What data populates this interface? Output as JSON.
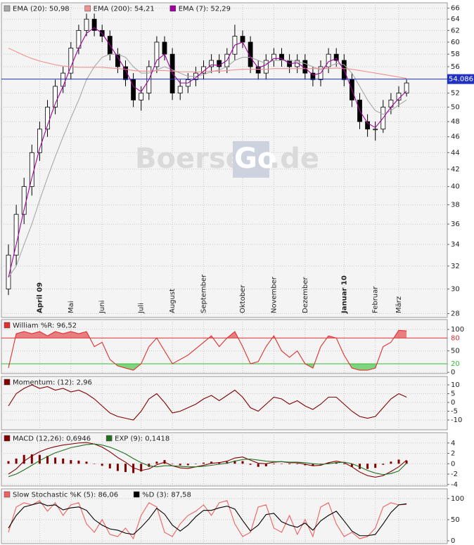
{
  "chart_data": [
    {
      "type": "candlestick",
      "log_scale": true,
      "grid": true,
      "ylim": [
        27.7,
        67
      ],
      "yticks": [
        28,
        30,
        32,
        34,
        36,
        38,
        40,
        42,
        44,
        46,
        48,
        50,
        52,
        56,
        58,
        60,
        62,
        64,
        66
      ],
      "categories": [
        null,
        null,
        null,
        null,
        "April 09",
        null,
        null,
        null,
        "Mai",
        null,
        null,
        null,
        "Juni",
        null,
        null,
        null,
        null,
        "Juli",
        null,
        null,
        null,
        "August",
        null,
        null,
        null,
        "September",
        null,
        null,
        null,
        null,
        "Oktober",
        null,
        null,
        null,
        "November",
        null,
        null,
        null,
        "Dezember",
        null,
        null,
        null,
        null,
        "Januar 10",
        null,
        null,
        null,
        "Februar",
        null,
        null,
        "März",
        null
      ],
      "open": [
        30,
        33,
        37,
        40,
        44,
        47,
        50,
        53,
        55,
        59,
        62,
        64,
        62,
        61,
        58,
        56,
        54,
        51,
        52,
        56,
        60,
        58,
        52,
        53,
        54,
        55,
        56,
        57,
        56,
        58,
        61,
        60,
        56,
        55,
        57,
        58,
        57,
        56,
        57,
        55,
        54,
        56,
        58,
        57,
        54,
        51,
        48,
        47,
        47,
        50,
        51,
        52
      ],
      "close": [
        33,
        37,
        40,
        44,
        47,
        50,
        53,
        55,
        59,
        62,
        64,
        62,
        61,
        58,
        56,
        54,
        51,
        52,
        56,
        60,
        58,
        52,
        53,
        54,
        55,
        56,
        57,
        56,
        58,
        61,
        60,
        56,
        55,
        57,
        58,
        57,
        56,
        57,
        55,
        54,
        56,
        58,
        57,
        54,
        51,
        48,
        47,
        47,
        50,
        51,
        52,
        53.5
      ],
      "high": [
        34,
        38,
        41,
        45,
        48,
        51,
        54,
        56,
        60,
        63,
        65,
        65,
        63,
        62,
        59,
        57,
        55,
        53,
        57,
        61,
        61,
        59,
        54,
        55,
        56,
        57,
        58,
        58,
        59,
        63,
        62,
        61,
        57,
        58,
        59,
        59,
        58,
        58,
        58,
        56,
        57,
        59,
        59,
        58,
        55,
        52,
        49,
        48,
        51,
        52,
        53,
        54
      ],
      "low": [
        29.5,
        32,
        36,
        39,
        43,
        46,
        49,
        52,
        54,
        58,
        61,
        61,
        60,
        57,
        55,
        53,
        50,
        49.5,
        51,
        55,
        57,
        51,
        51,
        52,
        53,
        54,
        55,
        55,
        55,
        57,
        59,
        55,
        54,
        54,
        56,
        56,
        55,
        55,
        54,
        53,
        53,
        55,
        56,
        53,
        50,
        47,
        46,
        45.5,
        46.5,
        49,
        50,
        51.5
      ],
      "series": [
        {
          "name": "EMA (20): 50,98",
          "color": "#a8a8a8",
          "values": [
            31,
            32,
            34,
            36,
            38.5,
            41,
            43.5,
            46,
            48.5,
            51,
            54,
            56,
            57.5,
            58,
            58,
            57.5,
            56,
            55,
            55,
            55.5,
            56,
            55.5,
            55,
            54.5,
            54.5,
            54.8,
            55.2,
            55.5,
            56,
            57,
            57.5,
            57.5,
            57,
            56.5,
            57,
            57,
            57,
            56.8,
            56.5,
            56,
            55.5,
            56,
            56.5,
            56.3,
            55,
            53,
            51,
            49.5,
            49,
            49.5,
            50.3,
            51
          ]
        },
        {
          "name": "EMA (200): 54,21",
          "color": "#f09090",
          "values": [
            59,
            58.4,
            57.8,
            57.3,
            56.9,
            56.6,
            56.3,
            56.1,
            56,
            55.9,
            55.9,
            55.9,
            55.9,
            55.8,
            55.7,
            55.6,
            55.4,
            55.3,
            55.3,
            55.4,
            55.4,
            55.3,
            55.2,
            55.2,
            55.2,
            55.2,
            55.3,
            55.3,
            55.4,
            55.5,
            55.6,
            55.6,
            55.6,
            55.6,
            55.7,
            55.7,
            55.7,
            55.7,
            55.7,
            55.7,
            55.7,
            55.7,
            55.8,
            55.7,
            55.6,
            55.4,
            55.2,
            55,
            54.8,
            54.6,
            54.4,
            54.2
          ]
        },
        {
          "name": "EMA (7): 52,29",
          "color": "#a000a0",
          "values": [
            31,
            34,
            37.5,
            41,
            44.5,
            47.5,
            50.5,
            53,
            56,
            59,
            61.5,
            62.5,
            61.5,
            59.5,
            57.5,
            55.5,
            53,
            52.2,
            54,
            57,
            58,
            55,
            53.5,
            53.5,
            54.3,
            55.3,
            56.3,
            56.2,
            57,
            59.5,
            60,
            57.5,
            55.8,
            56.3,
            57.3,
            57.3,
            56.5,
            56.6,
            55.8,
            54.7,
            55,
            56.8,
            57.3,
            55.5,
            52.5,
            49.5,
            47.8,
            47.2,
            48.5,
            50,
            51.2,
            52.3
          ]
        }
      ],
      "last_price": {
        "value": 54.086,
        "label": "54.086"
      },
      "watermark": [
        "Boerse",
        "Go",
        ".de"
      ]
    },
    {
      "type": "line",
      "grid": true,
      "ylim": [
        -3,
        123
      ],
      "yticks": [
        0,
        50,
        100
      ],
      "levels": [
        {
          "value": 80,
          "label": "80",
          "color": "#e03030"
        },
        {
          "value": 20,
          "label": "20",
          "color": "#30c030"
        }
      ],
      "series": [
        {
          "name": "William %R: 96,52",
          "color": "#e03030",
          "values": [
            10,
            90,
            95,
            90,
            95,
            85,
            95,
            90,
            95,
            90,
            95,
            60,
            70,
            30,
            15,
            10,
            5,
            20,
            60,
            80,
            50,
            20,
            30,
            40,
            55,
            70,
            85,
            60,
            80,
            95,
            60,
            20,
            25,
            60,
            85,
            50,
            35,
            50,
            20,
            10,
            60,
            85,
            80,
            40,
            10,
            5,
            5,
            10,
            60,
            70,
            98,
            96.5
          ]
        }
      ]
    },
    {
      "type": "line",
      "grid": true,
      "ylim": [
        -15.6,
        14.8
      ],
      "yticks": [
        -10,
        -5,
        0,
        5,
        10
      ],
      "series": [
        {
          "name": "Momentum: (12): 2,96",
          "color": "#800000",
          "values": [
            -2,
            5,
            8,
            10,
            8,
            9,
            7,
            8,
            6,
            7,
            5,
            2,
            -2,
            -6,
            -8,
            -9,
            -10,
            -5,
            2,
            5,
            0,
            -6,
            -5,
            -3,
            -1,
            2,
            4,
            1,
            4,
            7,
            3,
            -3,
            -5,
            -1,
            3,
            2,
            -1,
            1,
            -2,
            -4,
            -1,
            3,
            3,
            -1,
            -5,
            -8,
            -9,
            -8,
            -3,
            2,
            5,
            3
          ]
        }
      ]
    },
    {
      "type": "line",
      "grid": true,
      "ylim": [
        -4.3,
        6
      ],
      "yticks": [
        -4,
        -2,
        0,
        2,
        4
      ],
      "histogram": [
        0.5,
        1,
        1.7,
        1.8,
        1.7,
        1.5,
        1.2,
        1,
        0.7,
        0.6,
        0.4,
        0,
        -0.4,
        -0.9,
        -1.4,
        -1.6,
        -1.8,
        -1.5,
        -0.6,
        0.4,
        0.7,
        0,
        -0.3,
        -0.3,
        0,
        0.2,
        0.4,
        0.3,
        0.4,
        0.6,
        0.5,
        -0.2,
        -0.6,
        -0.5,
        -0.1,
        0,
        -0.1,
        -0.1,
        -0.3,
        -0.4,
        -0.2,
        0.2,
        0.3,
        -0.1,
        -0.6,
        -1,
        -1,
        -0.8,
        -0.2,
        0.4,
        0.8,
        0.6
      ],
      "histogram_color": "#800000",
      "series": [
        {
          "name": "MACD (12,26): 0,6946",
          "color": "#800000",
          "values": [
            -2,
            -1,
            0.5,
            1.5,
            2.3,
            2.9,
            3.3,
            3.6,
            3.8,
            4,
            4.1,
            3.8,
            3.2,
            2.3,
            1.2,
            0.3,
            -0.8,
            -1.3,
            -1,
            -0.2,
            0.3,
            -0.4,
            -0.8,
            -0.9,
            -0.6,
            -0.3,
            0.1,
            0.2,
            0.5,
            1.1,
            1.3,
            0.7,
            0.1,
            0,
            0.3,
            0.4,
            0.2,
            0.2,
            -0.1,
            -0.4,
            -0.3,
            0.2,
            0.5,
            0.2,
            -0.6,
            -1.6,
            -2.3,
            -2.6,
            -2.3,
            -1.5,
            -0.6,
            0.7
          ]
        },
        {
          "name": "EXP (9): 0,1418",
          "color": "#207020",
          "values": [
            -2.5,
            -2,
            -1.2,
            -0.3,
            0.6,
            1.4,
            2.1,
            2.6,
            3.1,
            3.4,
            3.7,
            3.8,
            3.6,
            3.2,
            2.6,
            1.9,
            1,
            0.2,
            -0.4,
            -0.6,
            -0.4,
            -0.4,
            -0.5,
            -0.6,
            -0.6,
            -0.5,
            -0.3,
            -0.1,
            0.1,
            0.5,
            0.8,
            0.9,
            0.7,
            0.5,
            0.4,
            0.4,
            0.3,
            0.3,
            0.2,
            0,
            -0.1,
            0,
            0.2,
            0.3,
            0,
            -0.6,
            -1.3,
            -1.8,
            -2.1,
            -1.9,
            -1.4,
            0.1
          ]
        }
      ]
    },
    {
      "type": "line",
      "grid": true,
      "ylim": [
        -6.7,
        123
      ],
      "yticks": [
        0,
        50,
        100
      ],
      "series": [
        {
          "name": "Slow Stochastic %K (5): 86,06",
          "color": "#f06060",
          "values": [
            20,
            80,
            90,
            85,
            95,
            70,
            90,
            60,
            85,
            90,
            40,
            20,
            50,
            15,
            10,
            30,
            5,
            60,
            90,
            80,
            20,
            10,
            40,
            60,
            70,
            85,
            60,
            90,
            95,
            40,
            10,
            20,
            80,
            85,
            30,
            20,
            60,
            15,
            50,
            10,
            80,
            90,
            40,
            10,
            20,
            5,
            10,
            30,
            80,
            90,
            85,
            86
          ]
        },
        {
          "name": "%D (3): 87,58",
          "color": "#000000",
          "values": [
            30,
            60,
            80,
            85,
            90,
            83,
            85,
            73,
            78,
            80,
            72,
            50,
            37,
            28,
            25,
            18,
            15,
            32,
            52,
            77,
            63,
            37,
            23,
            37,
            57,
            72,
            72,
            78,
            82,
            75,
            48,
            23,
            37,
            62,
            65,
            45,
            37,
            32,
            42,
            25,
            47,
            60,
            70,
            47,
            23,
            12,
            12,
            15,
            40,
            67,
            85,
            87.6
          ]
        }
      ]
    }
  ]
}
